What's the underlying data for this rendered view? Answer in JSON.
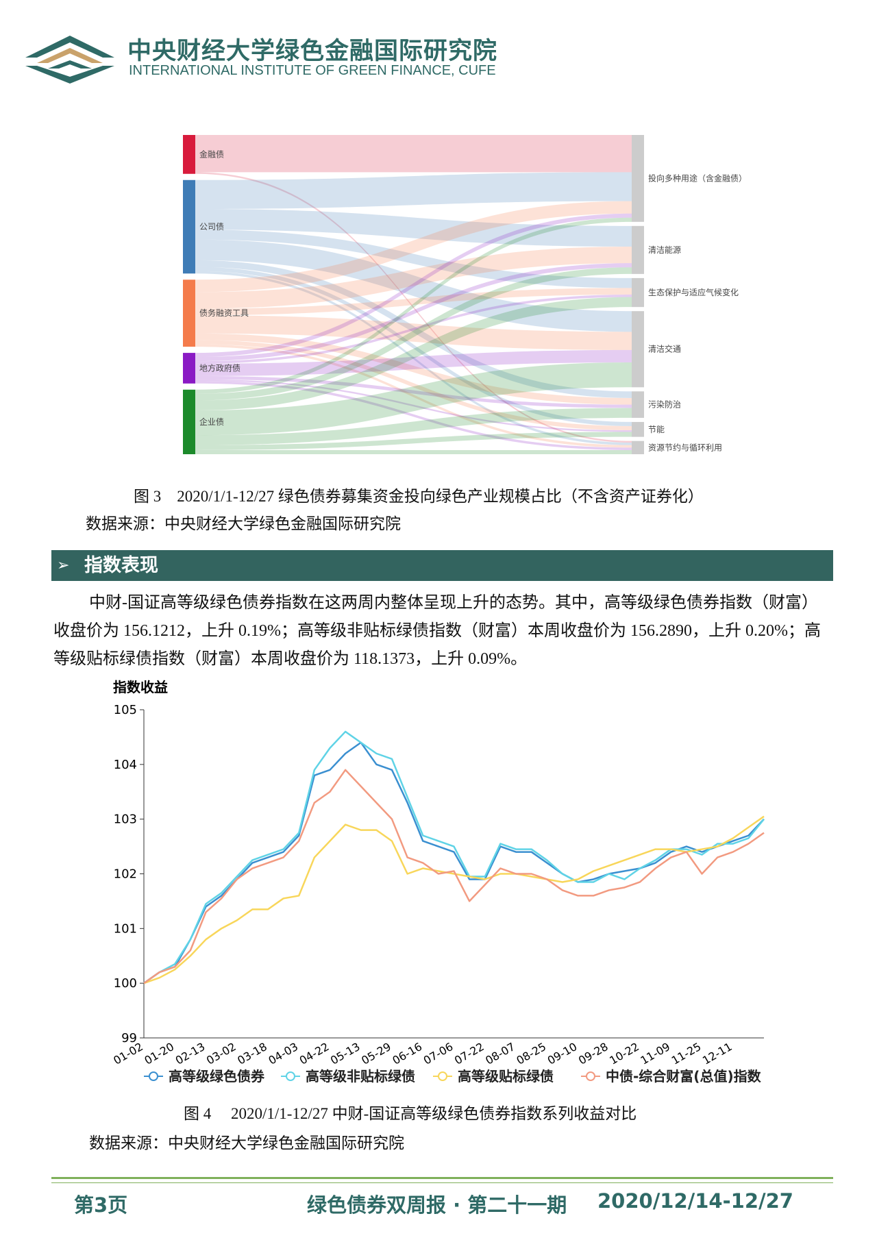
{
  "header": {
    "title": "中央财经大学绿色金融国际研究院",
    "subtitle": "INTERNATIONAL INSTITUTE OF GREEN FINANCE, CUFE"
  },
  "chart_data": [
    {
      "type": "sankey",
      "sources": [
        {
          "name": "金融债",
          "color": "#d81b3c"
        },
        {
          "name": "公司债",
          "color": "#3f7cb6"
        },
        {
          "name": "债务融资工具",
          "color": "#f47b4b"
        },
        {
          "name": "地方政府债",
          "color": "#8a1ac4"
        },
        {
          "name": "企业债",
          "color": "#1c8a2b"
        }
      ],
      "targets": [
        {
          "name": "投向多种用途（含金融债）",
          "color": "#cccccc"
        },
        {
          "name": "清洁能源",
          "color": "#cccccc"
        },
        {
          "name": "生态保护与适应气候变化",
          "color": "#cccccc"
        },
        {
          "name": "清洁交通",
          "color": "#cccccc"
        },
        {
          "name": "污染防治",
          "color": "#cccccc"
        },
        {
          "name": "节能",
          "color": "#cccccc"
        },
        {
          "name": "资源节约与循环利用",
          "color": "#cccccc"
        }
      ],
      "links": [
        {
          "source": 0,
          "target": 0,
          "value": 45
        },
        {
          "source": 0,
          "target": 6,
          "value": 2
        },
        {
          "source": 1,
          "target": 0,
          "value": 35
        },
        {
          "source": 1,
          "target": 1,
          "value": 25
        },
        {
          "source": 1,
          "target": 2,
          "value": 12
        },
        {
          "source": 1,
          "target": 3,
          "value": 25
        },
        {
          "source": 1,
          "target": 4,
          "value": 8
        },
        {
          "source": 1,
          "target": 5,
          "value": 5
        },
        {
          "source": 1,
          "target": 6,
          "value": 3
        },
        {
          "source": 2,
          "target": 0,
          "value": 15
        },
        {
          "source": 2,
          "target": 1,
          "value": 20
        },
        {
          "source": 2,
          "target": 2,
          "value": 8
        },
        {
          "source": 2,
          "target": 3,
          "value": 22
        },
        {
          "source": 2,
          "target": 4,
          "value": 8
        },
        {
          "source": 2,
          "target": 5,
          "value": 5
        },
        {
          "source": 2,
          "target": 6,
          "value": 3
        },
        {
          "source": 3,
          "target": 0,
          "value": 5
        },
        {
          "source": 3,
          "target": 1,
          "value": 5
        },
        {
          "source": 3,
          "target": 2,
          "value": 3
        },
        {
          "source": 3,
          "target": 3,
          "value": 15
        },
        {
          "source": 3,
          "target": 4,
          "value": 4
        },
        {
          "source": 3,
          "target": 5,
          "value": 2
        },
        {
          "source": 3,
          "target": 6,
          "value": 3
        },
        {
          "source": 4,
          "target": 0,
          "value": 5
        },
        {
          "source": 4,
          "target": 1,
          "value": 8
        },
        {
          "source": 4,
          "target": 2,
          "value": 12
        },
        {
          "source": 4,
          "target": 3,
          "value": 30
        },
        {
          "source": 4,
          "target": 4,
          "value": 12
        },
        {
          "source": 4,
          "target": 5,
          "value": 6
        },
        {
          "source": 4,
          "target": 6,
          "value": 5
        }
      ]
    },
    {
      "type": "line",
      "y_label": "指数收益",
      "categories": [
        "01-02",
        null,
        "01-20",
        null,
        "02-13",
        null,
        "03-02",
        null,
        "03-18",
        null,
        "04-03",
        null,
        "04-22",
        null,
        "05-13",
        null,
        "05-29",
        null,
        "06-16",
        null,
        "07-06",
        null,
        "07-22",
        null,
        "08-07",
        null,
        "08-25",
        null,
        "09-10",
        null,
        "09-28",
        null,
        "10-22",
        null,
        "11-09",
        null,
        "11-25",
        null,
        "12-11",
        null,
        null
      ],
      "ylim": [
        99,
        105
      ],
      "yticks": [
        99,
        100,
        101,
        102,
        103,
        104,
        105
      ],
      "series": [
        {
          "name": "高等级绿色债券",
          "color": "#3a8fd0",
          "values": [
            100,
            100.2,
            100.3,
            100.8,
            101.4,
            101.6,
            101.9,
            102.2,
            102.3,
            102.4,
            102.7,
            103.8,
            103.9,
            104.2,
            104.4,
            104.0,
            103.9,
            103.3,
            102.6,
            102.5,
            102.4,
            101.9,
            101.9,
            102.5,
            102.4,
            102.4,
            102.2,
            102.0,
            101.85,
            101.9,
            102.0,
            102.05,
            102.1,
            102.2,
            102.4,
            102.5,
            102.4,
            102.5,
            102.6,
            102.7,
            103.0
          ]
        },
        {
          "name": "高等级非贴标绿债",
          "color": "#5fd3e6",
          "values": [
            100,
            100.2,
            100.35,
            100.8,
            101.45,
            101.65,
            101.95,
            102.25,
            102.35,
            102.45,
            102.75,
            103.9,
            104.3,
            104.6,
            104.4,
            104.2,
            104.1,
            103.4,
            102.7,
            102.6,
            102.5,
            101.95,
            101.95,
            102.55,
            102.45,
            102.45,
            102.25,
            102.0,
            101.85,
            101.85,
            102.0,
            101.9,
            102.1,
            102.25,
            102.45,
            102.45,
            102.35,
            102.55,
            102.55,
            102.65,
            103.0
          ]
        },
        {
          "name": "高等级贴标绿债",
          "color": "#f8d65a",
          "values": [
            100,
            100.1,
            100.25,
            100.5,
            100.8,
            101.0,
            101.15,
            101.35,
            101.35,
            101.55,
            101.6,
            102.3,
            102.6,
            102.9,
            102.8,
            102.8,
            102.6,
            102.0,
            102.1,
            102.05,
            102.0,
            101.95,
            101.9,
            102.0,
            102.0,
            101.95,
            101.9,
            101.85,
            101.9,
            102.05,
            102.15,
            102.25,
            102.35,
            102.45,
            102.45,
            102.4,
            102.45,
            102.5,
            102.65,
            102.85,
            103.05
          ]
        },
        {
          "name": "中债-综合财富(总值)指数",
          "color": "#f29a80",
          "values": [
            100,
            100.2,
            100.3,
            100.6,
            101.3,
            101.55,
            101.9,
            102.1,
            102.2,
            102.3,
            102.6,
            103.3,
            103.5,
            103.9,
            103.6,
            103.3,
            103.0,
            102.3,
            102.2,
            102.0,
            102.05,
            101.5,
            101.8,
            102.1,
            102.0,
            102.0,
            101.9,
            101.7,
            101.6,
            101.6,
            101.7,
            101.75,
            101.85,
            102.1,
            102.3,
            102.4,
            102.0,
            102.3,
            102.4,
            102.55,
            102.75
          ]
        }
      ]
    }
  ],
  "figure3": {
    "caption": "图 3　2020/1/1-12/27 绿色债券募集资金投向绿色产业规模占比（不含资产证券化）",
    "source": "数据来源：中央财经大学绿色金融国际研究院"
  },
  "section": {
    "title": "指数表现"
  },
  "paragraph": "中财-国证高等级绿色债券指数在这两周内整体呈现上升的态势。其中，高等级绿色债券指数（财富）收盘价为 156.1212，上升 0.19%；高等级非贴标绿债指数（财富）本周收盘价为 156.2890，上升 0.20%；高等级贴标绿债指数（财富）本周收盘价为 118.1373，上升 0.09%。",
  "figure4": {
    "caption": "图 4　 2020/1/1-12/27 中财-国证高等级绿色债券指数系列收益对比",
    "source": "数据来源：中央财经大学绿色金融国际研究院"
  },
  "footer": {
    "page": "第3页",
    "title": "绿色债券双周报 · 第二十一期",
    "date": "2020/12/14-12/27"
  }
}
